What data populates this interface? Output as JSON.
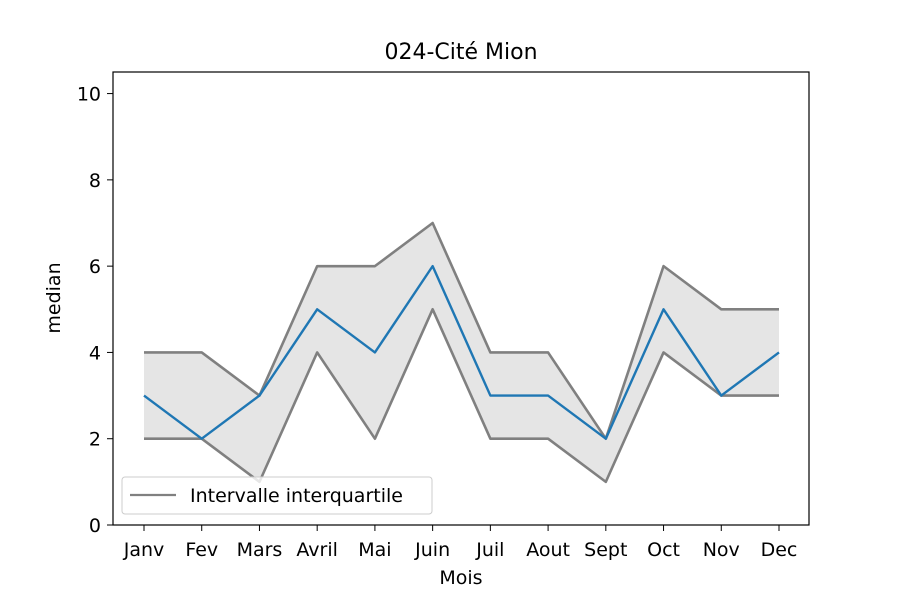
{
  "chart_data": {
    "type": "line",
    "title": "024-Cité Mion",
    "xlabel": "Mois",
    "ylabel": "median",
    "categories": [
      "Janv",
      "Fev",
      "Mars",
      "Avril",
      "Mai",
      "Juin",
      "Juil",
      "Aout",
      "Sept",
      "Oct",
      "Nov",
      "Dec"
    ],
    "ylim": [
      0,
      10.5
    ],
    "yticks": [
      0,
      2,
      4,
      6,
      8,
      10
    ],
    "grid": false,
    "legend_position": "lower-left",
    "series": [
      {
        "name": "median",
        "role": "median",
        "color": "#1f77b4",
        "values": [
          3,
          2,
          3,
          5,
          4,
          6,
          3,
          3,
          2,
          5,
          3,
          4
        ]
      },
      {
        "role": "q3",
        "color": "#808080",
        "values": [
          4,
          4,
          3,
          6,
          6,
          7,
          4,
          4,
          2,
          6,
          5,
          5
        ]
      },
      {
        "role": "q1",
        "color": "#808080",
        "values": [
          2,
          2,
          1,
          4,
          2,
          5,
          2,
          2,
          1,
          4,
          3,
          3
        ]
      }
    ],
    "band": {
      "label": "Intervalle interquartile",
      "fill": "#e5e5e5",
      "line_color": "#808080"
    }
  }
}
